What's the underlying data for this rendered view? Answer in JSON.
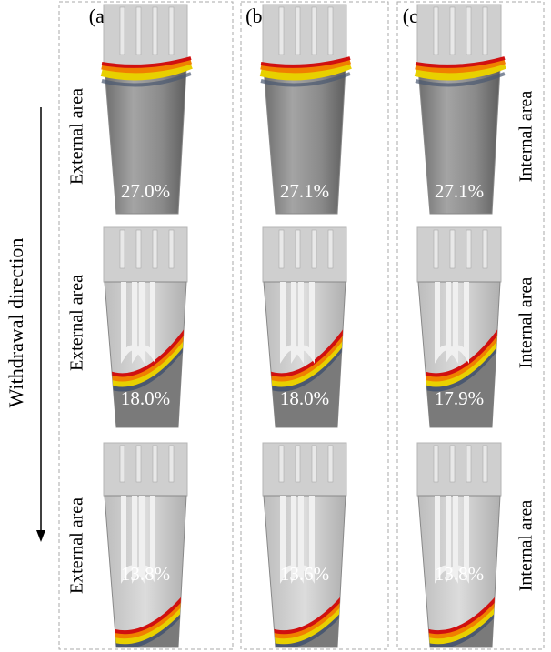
{
  "axis_label": "Withdrawal direction",
  "panels": [
    {
      "label": "(a)",
      "rows": [
        {
          "side_label": "External area",
          "fraction": "27.0%"
        },
        {
          "side_label": "External area",
          "fraction": "18.0%"
        },
        {
          "side_label": "External area",
          "fraction": "13.8%"
        }
      ]
    },
    {
      "label": "(b)",
      "rows": [
        {
          "fraction": "27.1%"
        },
        {
          "fraction": "18.0%"
        },
        {
          "fraction": "13.6%"
        }
      ]
    },
    {
      "label": "(c)",
      "rows": [
        {
          "side_label": "Internal area",
          "fraction": "27.1%"
        },
        {
          "side_label": "Internal area",
          "fraction": "17.9%"
        },
        {
          "side_label": "Internal area",
          "fraction": "13.8%"
        }
      ]
    }
  ]
}
